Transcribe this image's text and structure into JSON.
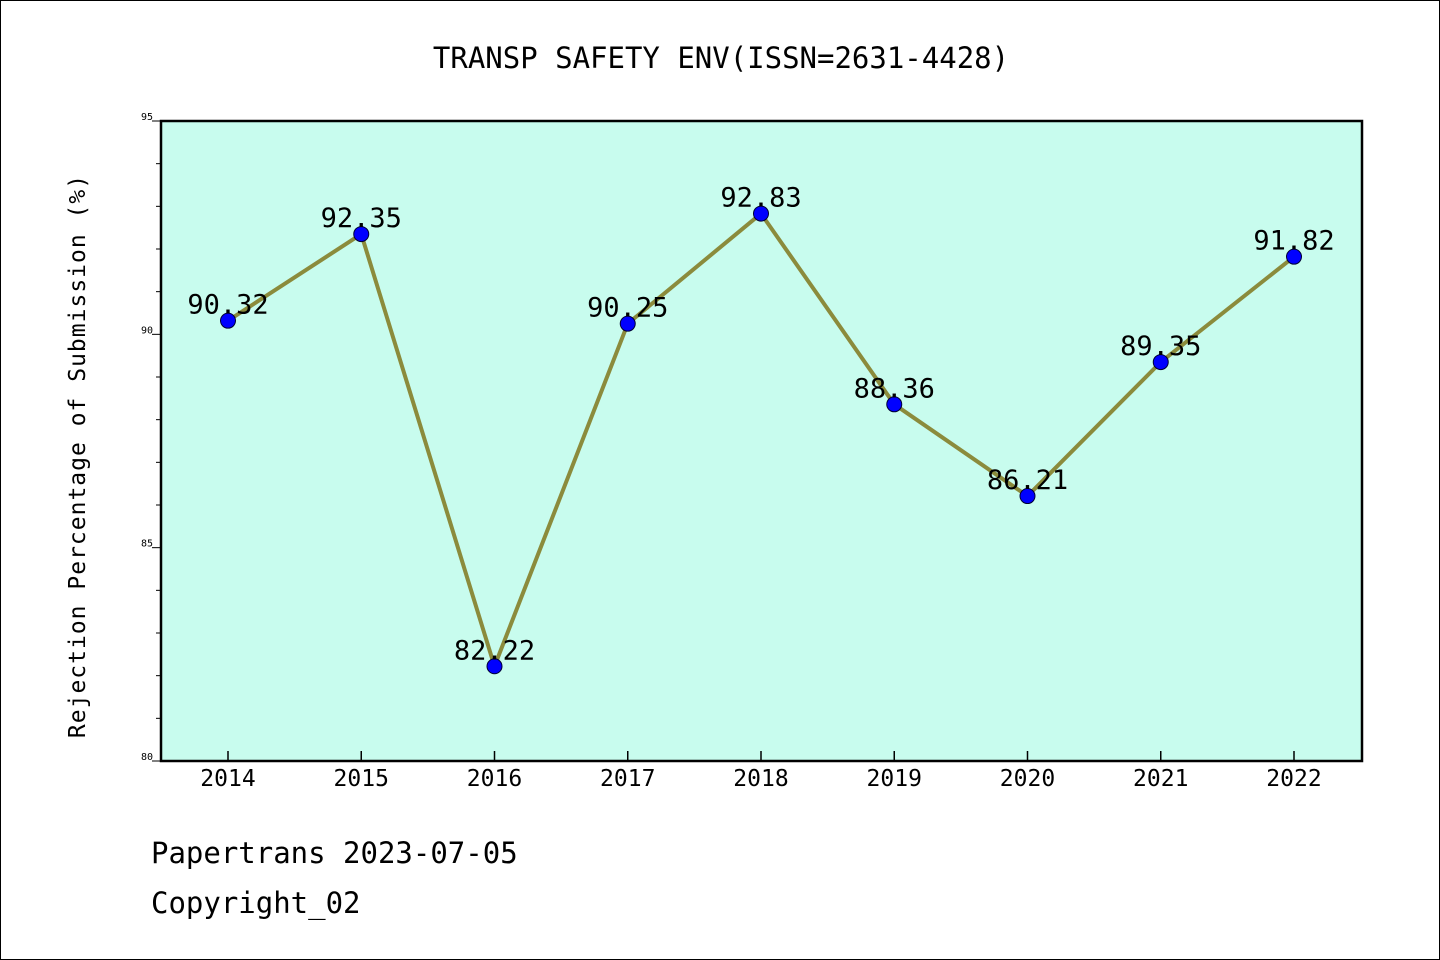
{
  "chart_data": {
    "type": "line",
    "title": "TRANSP SAFETY ENV(ISSN=2631-4428)",
    "xlabel": "",
    "ylabel": "Rejection Percentage of Submission (%)",
    "categories": [
      "2014",
      "2015",
      "2016",
      "2017",
      "2018",
      "2019",
      "2020",
      "2021",
      "2022"
    ],
    "series": [
      {
        "values": [
          90.32,
          92.35,
          82.22,
          90.25,
          92.83,
          88.36,
          86.21,
          89.35,
          91.82
        ]
      }
    ],
    "data_labels": [
      "90.32",
      "92.35",
      "82.22",
      "90.25",
      "92.83",
      "88.36",
      "86.21",
      "89.35",
      "91.82"
    ],
    "ylim": [
      80,
      95
    ],
    "yticks": [
      80,
      85,
      90,
      95
    ],
    "grid": false,
    "colors": {
      "plot_background": "#c8fcee",
      "line": "#8b8b3c",
      "marker": "#0000ff"
    }
  },
  "footer": {
    "line1": "Papertrans 2023-07-05",
    "line2": "Copyright_02"
  }
}
